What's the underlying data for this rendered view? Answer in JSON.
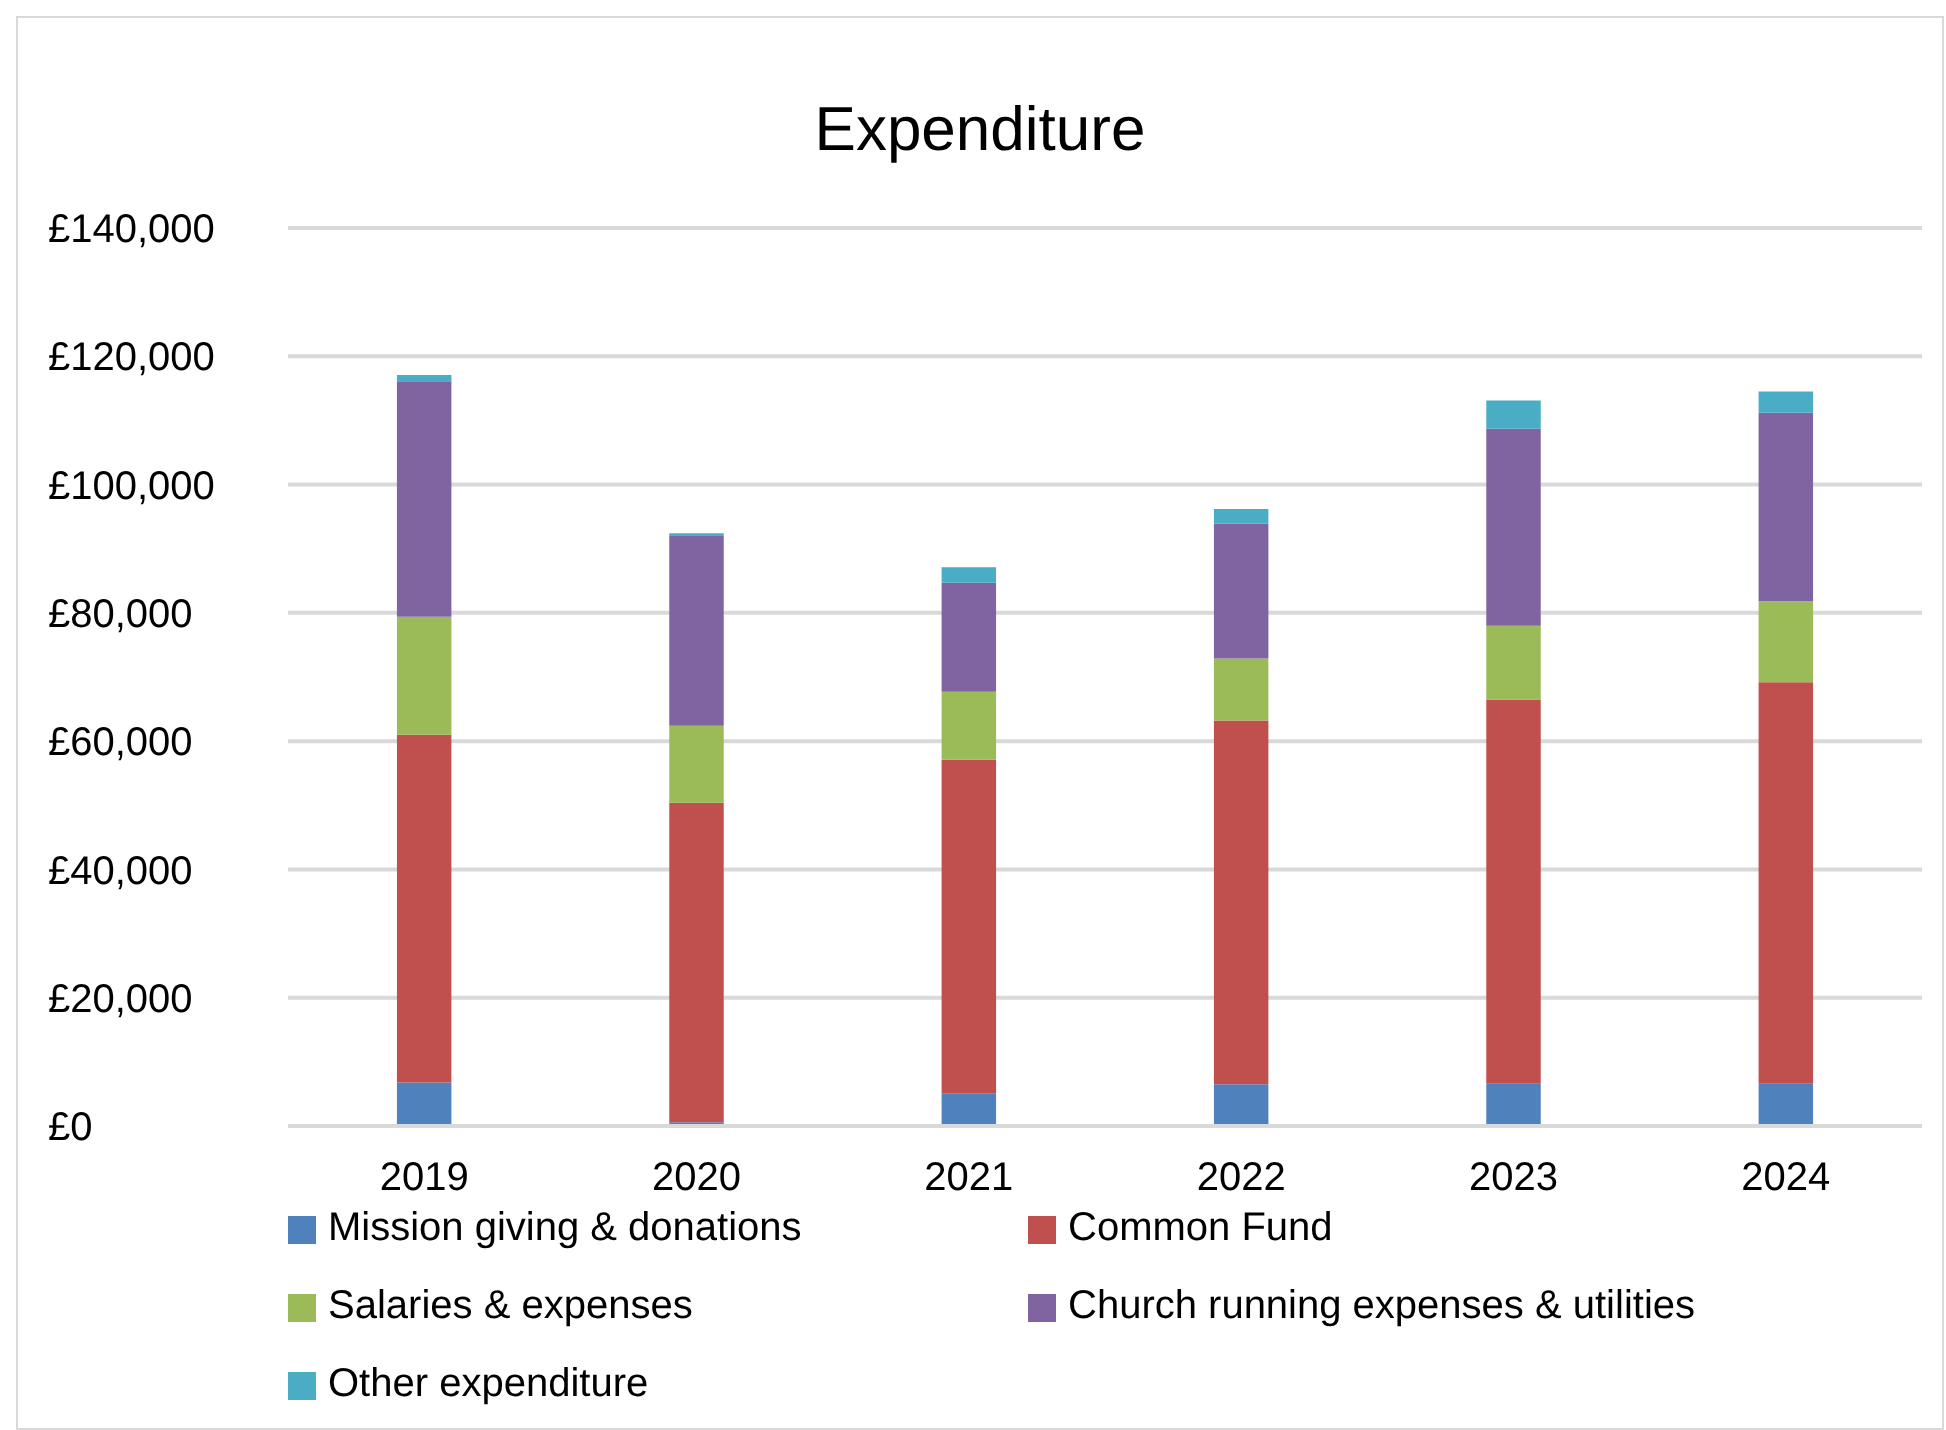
{
  "chart_data": {
    "type": "bar",
    "title": "Expenditure",
    "stacked": true,
    "categories": [
      "2019",
      "2020",
      "2021",
      "2022",
      "2023",
      "2024"
    ],
    "series": [
      {
        "name": "Mission giving & donations",
        "color": "#4f81bd",
        "values": [
          6800,
          600,
          5100,
          6500,
          6600,
          6600
        ]
      },
      {
        "name": "Common Fund",
        "color": "#c0504d",
        "values": [
          54200,
          49800,
          52000,
          56700,
          59900,
          62600
        ]
      },
      {
        "name": "Salaries & expenses",
        "color": "#9bbb59",
        "values": [
          18400,
          12000,
          10600,
          9700,
          11500,
          12600
        ]
      },
      {
        "name": "Church running expenses & utilities",
        "color": "#8064a2",
        "values": [
          36700,
          29700,
          17000,
          21000,
          30700,
          29400
        ]
      },
      {
        "name": "Other expenditure",
        "color": "#4bacc6",
        "values": [
          1000,
          300,
          2400,
          2300,
          4400,
          3300
        ]
      }
    ],
    "ylim": [
      0,
      140000
    ],
    "yticks": [
      {
        "value": 0,
        "label": "£0"
      },
      {
        "value": 20000,
        "label": "£20,000"
      },
      {
        "value": 40000,
        "label": "£40,000"
      },
      {
        "value": 60000,
        "label": "£60,000"
      },
      {
        "value": 80000,
        "label": "£80,000"
      },
      {
        "value": 100000,
        "label": "£100,000"
      },
      {
        "value": 120000,
        "label": "£120,000"
      },
      {
        "value": 140000,
        "label": "£140,000"
      }
    ],
    "grid": "y",
    "legend": "bottom"
  }
}
